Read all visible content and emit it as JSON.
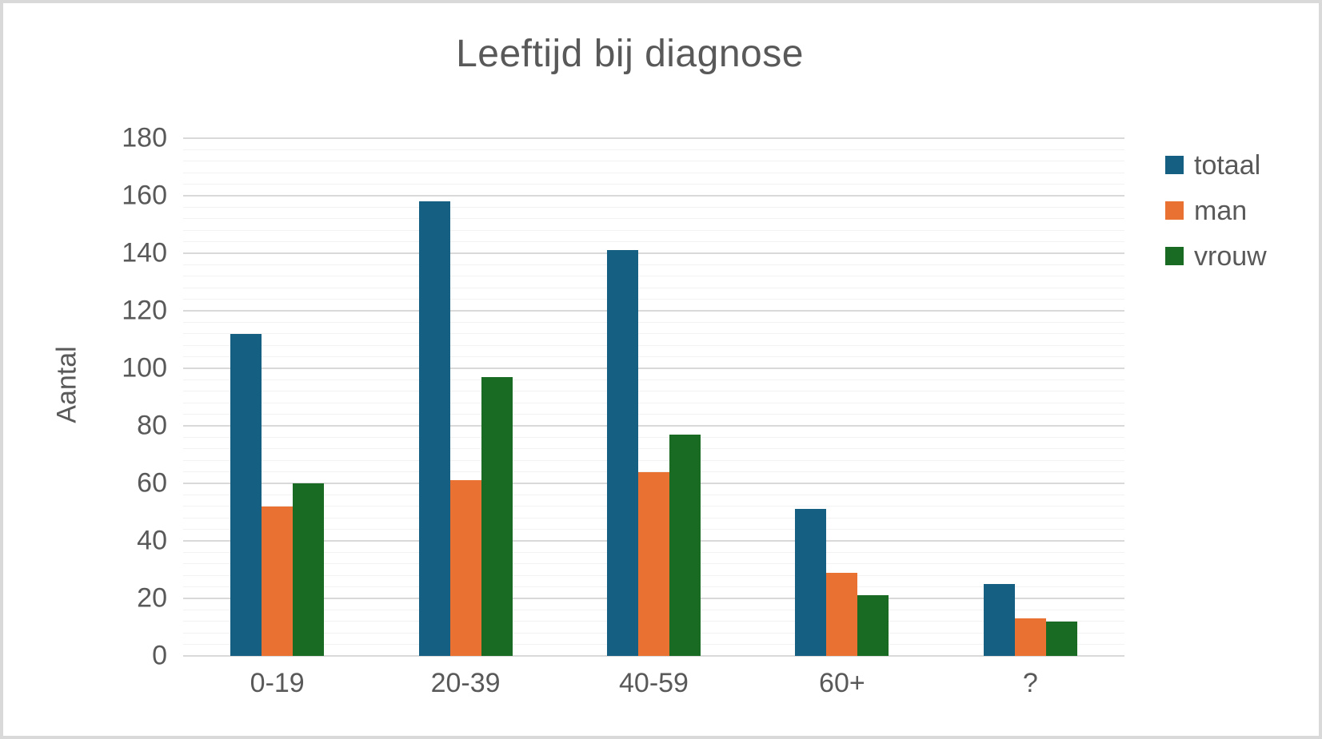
{
  "frame": {
    "background": "#FFFFFF",
    "border_color": "#D9D9D9",
    "text_color": "#595959"
  },
  "chart_data": {
    "type": "bar",
    "title": "Leeftijd bij diagnose",
    "xlabel": "",
    "ylabel": "Aantal",
    "categories": [
      "0-19",
      "20-39",
      "40-59",
      "60+",
      "?"
    ],
    "series": [
      {
        "name": "totaal",
        "color": "#156082",
        "values": [
          112,
          158,
          141,
          51,
          25
        ]
      },
      {
        "name": "man",
        "color": "#E97132",
        "values": [
          52,
          61,
          64,
          29,
          13
        ]
      },
      {
        "name": "vrouw",
        "color": "#196B24",
        "values": [
          60,
          97,
          77,
          21,
          12
        ]
      }
    ],
    "y_axis": {
      "min": 0,
      "max": 180,
      "major_step": 20,
      "minor_step": 4,
      "tick_labels": [
        "0",
        "20",
        "40",
        "60",
        "80",
        "100",
        "120",
        "140",
        "160",
        "180"
      ]
    },
    "grid": {
      "major_color": "#D9D9D9",
      "minor_color": "#F2F2F2",
      "major_on": true,
      "minor_on": true
    },
    "legend": {
      "position": "right",
      "entries": [
        "totaal",
        "man",
        "vrouw"
      ]
    }
  }
}
